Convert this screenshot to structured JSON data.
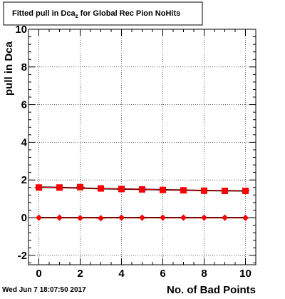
{
  "chart_data": {
    "type": "scatter",
    "title": "Fitted pull in Dca",
    "title_subscript": "z",
    "title_suffix": " for Global Rec Pion NoHits",
    "xlabel": "No. of Bad Points",
    "ylabel": "pull in Dca",
    "xlim": [
      -0.5,
      10.5
    ],
    "ylim": [
      -2.5,
      10.0
    ],
    "x_ticks": [
      0,
      2,
      4,
      6,
      8,
      10
    ],
    "y_ticks": [
      -2,
      0,
      2,
      4,
      6,
      8,
      10
    ],
    "grid": true,
    "series": [
      {
        "marker": "square",
        "color": "#ff0000",
        "x": [
          0,
          1,
          2,
          3,
          4,
          5,
          6,
          7,
          8,
          9,
          10
        ],
        "y": [
          1.6,
          1.6,
          1.62,
          1.55,
          1.52,
          1.5,
          1.47,
          1.45,
          1.43,
          1.42,
          1.42
        ],
        "fit": [
          1.62,
          1.6,
          1.57,
          1.54,
          1.52,
          1.5,
          1.48,
          1.46,
          1.44,
          1.43,
          1.42
        ]
      },
      {
        "marker": "diamond",
        "color": "#ff0000",
        "x": [
          0,
          1,
          2,
          3,
          4,
          5,
          6,
          7,
          8,
          9,
          10
        ],
        "y": [
          0.0,
          0.0,
          -0.02,
          -0.03,
          0.0,
          0.0,
          0.0,
          0.0,
          0.0,
          0.0,
          -0.01
        ],
        "fit": [
          0.0,
          0.0,
          0.0,
          0.0,
          0.0,
          0.0,
          0.0,
          0.0,
          0.0,
          0.0,
          0.0
        ]
      }
    ]
  },
  "footer": {
    "timestamp": "Wed Jun  7 18:07:50 2017"
  }
}
